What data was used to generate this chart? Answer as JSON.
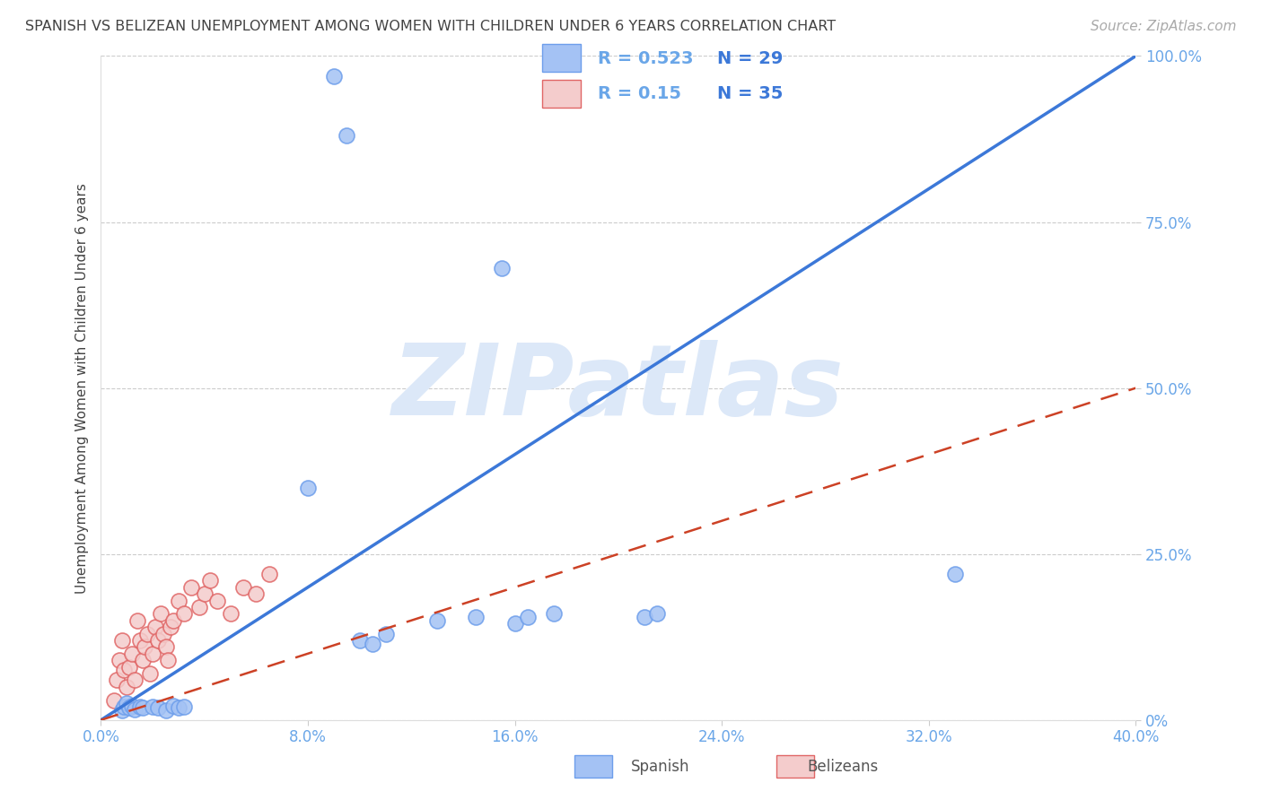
{
  "title": "SPANISH VS BELIZEAN UNEMPLOYMENT AMONG WOMEN WITH CHILDREN UNDER 6 YEARS CORRELATION CHART",
  "source": "Source: ZipAtlas.com",
  "ylabel": "Unemployment Among Women with Children Under 6 years",
  "xlim": [
    0.0,
    0.4
  ],
  "ylim": [
    0.0,
    1.0
  ],
  "xtick_vals": [
    0.0,
    0.08,
    0.16,
    0.24,
    0.32,
    0.4
  ],
  "xtick_labels": [
    "0.0%",
    "8.0%",
    "16.0%",
    "24.0%",
    "32.0%",
    "40.0%"
  ],
  "ytick_vals": [
    0.0,
    0.25,
    0.5,
    0.75,
    1.0
  ],
  "ytick_labels": [
    "0%",
    "25.0%",
    "50.0%",
    "75.0%",
    "100.0%"
  ],
  "R_spanish": 0.523,
  "N_spanish": 29,
  "R_belizean": 0.15,
  "N_belizean": 35,
  "spanish_color": "#a4c2f4",
  "spanish_edge_color": "#6d9eeb",
  "belizean_color": "#f4cccc",
  "belizean_edge_color": "#e06666",
  "spanish_line_color": "#3c78d8",
  "belizean_line_color": "#cc4125",
  "watermark_color": "#dce8f8",
  "watermark_text": "ZIPatlas",
  "title_color": "#434343",
  "tick_label_color": "#6aa6e8",
  "ylabel_color": "#434343",
  "legend_R_color": "#6aa6e8",
  "legend_N_color": "#3c78d8",
  "spanish_x": [
    0.008,
    0.009,
    0.01,
    0.011,
    0.012,
    0.013,
    0.015,
    0.016,
    0.02,
    0.022,
    0.025,
    0.028,
    0.03,
    0.032,
    0.08,
    0.09,
    0.095,
    0.1,
    0.105,
    0.11,
    0.13,
    0.145,
    0.155,
    0.16,
    0.165,
    0.175,
    0.21,
    0.215,
    0.33
  ],
  "spanish_y": [
    0.015,
    0.02,
    0.025,
    0.018,
    0.022,
    0.016,
    0.02,
    0.018,
    0.02,
    0.018,
    0.015,
    0.022,
    0.018,
    0.02,
    0.35,
    0.97,
    0.88,
    0.12,
    0.115,
    0.13,
    0.15,
    0.155,
    0.68,
    0.145,
    0.155,
    0.16,
    0.155,
    0.16,
    0.22
  ],
  "belizean_x": [
    0.005,
    0.006,
    0.007,
    0.008,
    0.009,
    0.01,
    0.011,
    0.012,
    0.013,
    0.014,
    0.015,
    0.016,
    0.017,
    0.018,
    0.019,
    0.02,
    0.021,
    0.022,
    0.023,
    0.024,
    0.025,
    0.026,
    0.027,
    0.028,
    0.03,
    0.032,
    0.035,
    0.038,
    0.04,
    0.042,
    0.045,
    0.05,
    0.055,
    0.06,
    0.065
  ],
  "belizean_y": [
    0.03,
    0.06,
    0.09,
    0.12,
    0.075,
    0.05,
    0.08,
    0.1,
    0.06,
    0.15,
    0.12,
    0.09,
    0.11,
    0.13,
    0.07,
    0.1,
    0.14,
    0.12,
    0.16,
    0.13,
    0.11,
    0.09,
    0.14,
    0.15,
    0.18,
    0.16,
    0.2,
    0.17,
    0.19,
    0.21,
    0.18,
    0.16,
    0.2,
    0.19,
    0.22
  ]
}
